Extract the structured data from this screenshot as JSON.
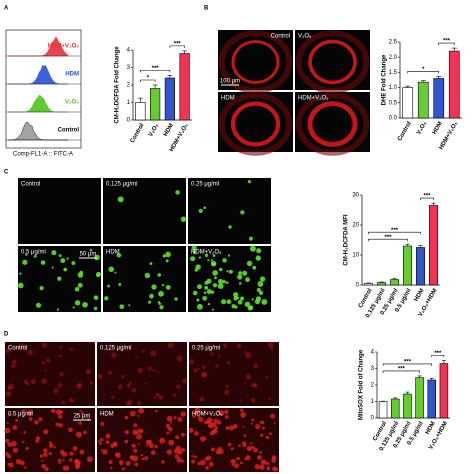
{
  "panel_labels": [
    "A",
    "B",
    "C",
    "D"
  ],
  "flow_cytometry": {
    "x_label": "Comp-FL1-A :: FITC-A",
    "traces": [
      "HDM+V₂O₅",
      "HDM",
      "V₂O₅",
      "Control"
    ],
    "colors": [
      "#e8303a",
      "#2a4fd6",
      "#4fc41e",
      "#9a9a9a"
    ]
  },
  "micrographs": [
    {
      "labels": [
        "Control",
        "V₂O₅",
        "HDM",
        "HDM+V₂O₅"
      ],
      "scale_bar": "100 μm"
    },
    {
      "labels": [
        "Control",
        "0.125 μg/ml",
        "0.25 μg/ml",
        "0.5 μg/ml",
        "HDM",
        "HDM+V₂O₅"
      ],
      "scale_bar": "50 μm"
    },
    {
      "labels": [
        "Control",
        "0.125 μg/ml",
        "0.25 μg/ml",
        "0.5 μg/ml",
        "HDM",
        "HDM+V₂O₅"
      ],
      "scale_bar": "25 μm"
    }
  ],
  "chart_data": [
    {
      "type": "bar",
      "y_label": "CM-H₂DCFDA Fold Change",
      "categories": [
        "Control",
        "V₂O₅",
        "HDM",
        "HDM+V₂O₅"
      ],
      "values": [
        1.0,
        1.8,
        2.4,
        3.8
      ],
      "errors": [
        0.25,
        0.2,
        0.15,
        0.15
      ],
      "colors": [
        "#ffffff",
        "#66cc33",
        "#3355cc",
        "#ee3355"
      ],
      "ylim": [
        0,
        4
      ],
      "yticks": [
        0,
        1,
        2,
        3,
        4
      ],
      "comparisons": [
        {
          "label": "*",
          "between": [
            "Control",
            "V₂O₅"
          ]
        },
        {
          "label": "***",
          "between": [
            "Control",
            "HDM"
          ]
        },
        {
          "label": "***",
          "between": [
            "HDM",
            "HDM+V₂O₅"
          ]
        }
      ]
    },
    {
      "type": "bar",
      "y_label": "DHE Fold Change",
      "categories": [
        "Control",
        "V₂O₅",
        "HDM",
        "HDM+V₂O₅"
      ],
      "values": [
        1.0,
        1.18,
        1.3,
        2.2
      ],
      "errors": [
        0.05,
        0.05,
        0.07,
        0.1
      ],
      "colors": [
        "#ffffff",
        "#66cc33",
        "#3355cc",
        "#ee3355"
      ],
      "ylim": [
        0,
        2.5
      ],
      "yticks": [
        {
          "value": 0,
          "label": "0.0"
        },
        {
          "value": 0.5,
          "label": "0.5"
        },
        {
          "value": 1,
          "label": "1.0"
        },
        {
          "value": 1.5,
          "label": "1.5"
        },
        {
          "value": 2,
          "label": "2.0"
        },
        {
          "value": 2.5,
          "label": "2.5"
        }
      ],
      "comparisons": [
        {
          "label": "*",
          "between": [
            "Control",
            "HDM"
          ]
        },
        {
          "label": "***",
          "between": [
            "HDM",
            "HDM+V₂O₅"
          ]
        }
      ]
    },
    {
      "type": "bar",
      "y_label": "CM-H₂DCFDA MFI",
      "categories": [
        "Control",
        "0.125 μg/ml",
        "0.25 μg/ml",
        "0.5 μg/ml",
        "HDM",
        "V₂O₅+HDM"
      ],
      "values": [
        0.5,
        0.8,
        1.8,
        13,
        12.5,
        26.5
      ],
      "errors": [
        0.2,
        0.2,
        0.3,
        0.6,
        0.6,
        0.8
      ],
      "colors": [
        "#ffffff",
        "#66cc33",
        "#66cc33",
        "#66cc33",
        "#3355cc",
        "#ee3355"
      ],
      "ylim": [
        0,
        30
      ],
      "yticks": [
        0,
        10,
        20,
        30
      ],
      "comparisons": [
        {
          "label": "***",
          "between": [
            "Control",
            "0.5 μg/ml"
          ]
        },
        {
          "label": "***",
          "between": [
            "Control",
            "HDM"
          ]
        },
        {
          "label": "***",
          "between": [
            "HDM",
            "V₂O₅+HDM"
          ]
        }
      ]
    },
    {
      "type": "bar",
      "y_label": "MitoSOX Fold of Change",
      "categories": [
        "Control",
        "0.125 μg/ml",
        "0.25 μg/ml",
        "0.5 μg/ml",
        "HDM",
        "V₂O₅+HDM"
      ],
      "values": [
        1.0,
        1.15,
        1.45,
        2.45,
        2.3,
        3.3
      ],
      "errors": [
        0.02,
        0.07,
        0.12,
        0.1,
        0.1,
        0.2
      ],
      "colors": [
        "#ffffff",
        "#66cc33",
        "#66cc33",
        "#66cc33",
        "#3355cc",
        "#ee3355"
      ],
      "ylim": [
        0,
        4
      ],
      "yticks": [
        0,
        1,
        2,
        3,
        4
      ],
      "comparisons": [
        {
          "label": "***",
          "between": [
            "Control",
            "0.5 μg/ml"
          ]
        },
        {
          "label": "***",
          "between": [
            "Control",
            "HDM"
          ]
        },
        {
          "label": "***",
          "between": [
            "HDM",
            "V₂O₅+HDM"
          ]
        }
      ]
    }
  ]
}
